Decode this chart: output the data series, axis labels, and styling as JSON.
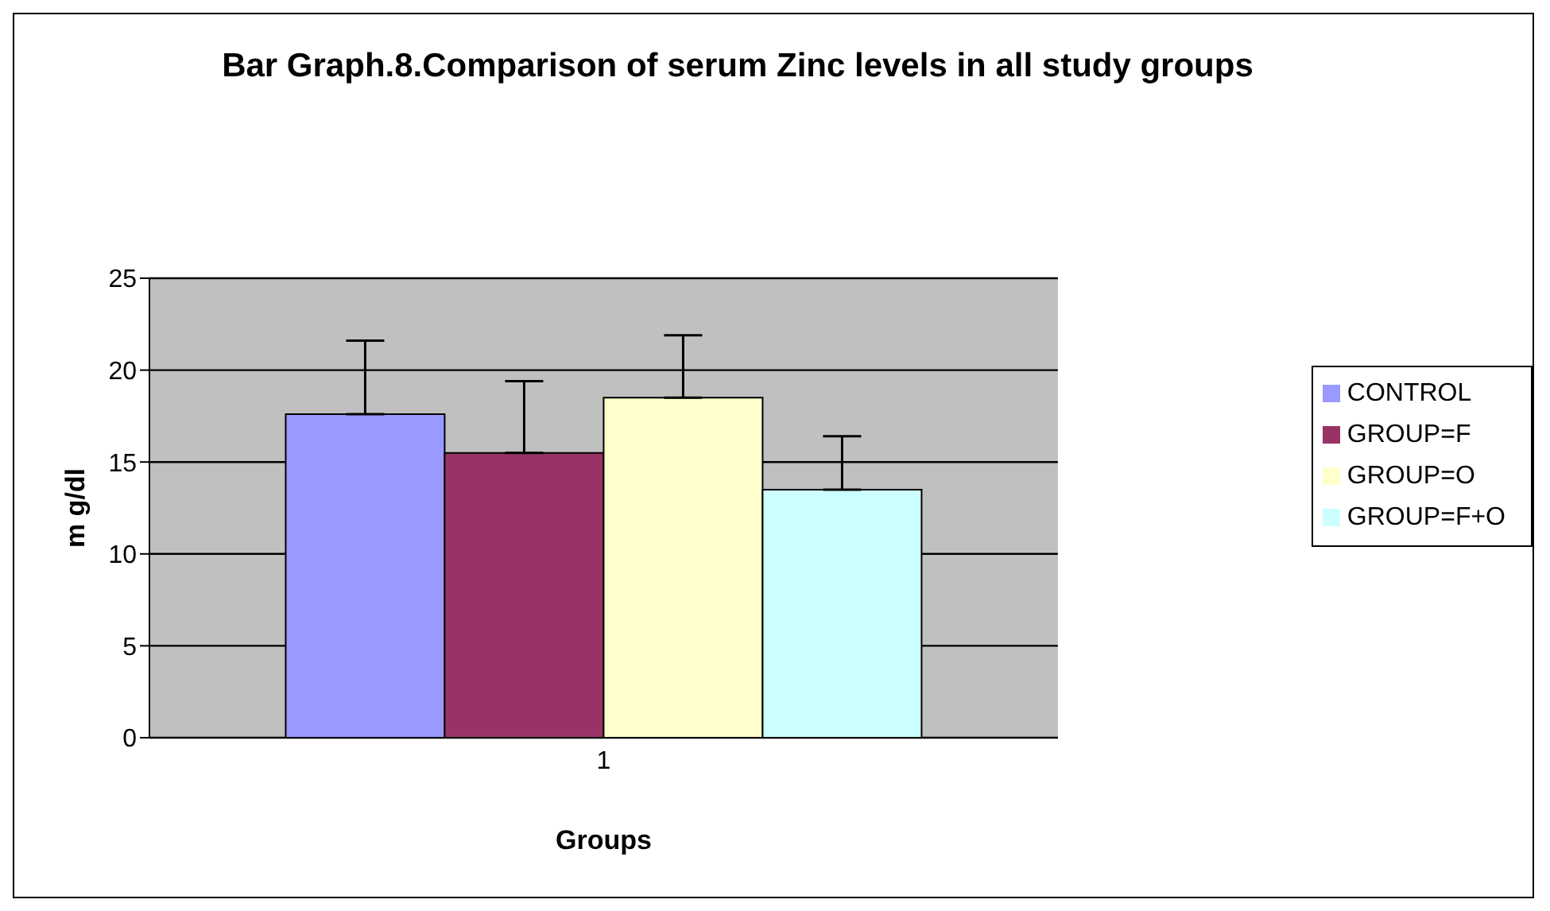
{
  "chart_data": {
    "type": "bar",
    "title": "Bar Graph.8.Comparison of serum Zinc levels in all study groups",
    "xlabel": "Groups",
    "ylabel": "m g/dl",
    "categories": [
      "1"
    ],
    "series": [
      {
        "name": "CONTROL",
        "color": "#9999ff",
        "values": [
          17.6
        ],
        "errors": [
          4.0
        ]
      },
      {
        "name": "GROUP=F",
        "color": "#993366",
        "values": [
          15.5
        ],
        "errors": [
          3.9
        ]
      },
      {
        "name": "GROUP=O",
        "color": "#ffffcc",
        "values": [
          18.5
        ],
        "errors": [
          3.4
        ]
      },
      {
        "name": "GROUP=F+O",
        "color": "#ccffff",
        "values": [
          13.5
        ],
        "errors": [
          2.9
        ]
      }
    ],
    "ylim": [
      0,
      25
    ],
    "yticks": [
      0,
      5,
      10,
      15,
      20,
      25
    ],
    "grid": "y",
    "legend": "right"
  }
}
